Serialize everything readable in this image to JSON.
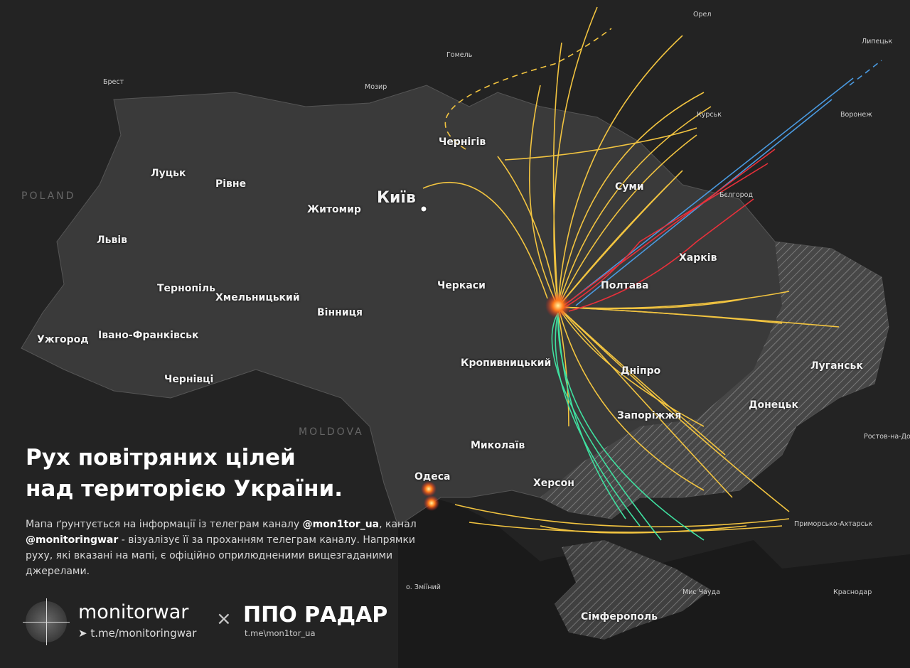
{
  "colors": {
    "background": "#202020",
    "land": "#3a3a3a",
    "attack_drone": "#f2c440",
    "missile_ballistic": "#e8303a",
    "missile_blue": "#4a9ae0",
    "missile_green": "#3fe0a0",
    "explosion": "#ff6a1a"
  },
  "map": {
    "countries": [
      "POLAND",
      "MOLDOVA"
    ],
    "capital": "Київ",
    "cities": [
      "Чернігів",
      "Луцьк",
      "Рівне",
      "Житомир",
      "Львів",
      "Тернопіль",
      "Хмельницький",
      "Вінниця",
      "Черкаси",
      "Суми",
      "Харків",
      "Полтава",
      "Ужгород",
      "Івано-Франківськ",
      "Чернівці",
      "Кропивницький",
      "Дніпро",
      "Луганськ",
      "Донецьк",
      "Запоріжжя",
      "Миколаїв",
      "Херсон",
      "Одеса",
      "Сімферополь"
    ],
    "foreign_places": [
      "Орел",
      "Липецьк",
      "Гомель",
      "Брест",
      "Мозир",
      "Курськ",
      "Воронеж",
      "Бєлгород",
      "Ростов-на-Дону",
      "Приморсько-Ахтарськ",
      "Краснодар",
      "Мис Чауда",
      "о. Зміїний"
    ]
  },
  "title": {
    "line1": "Рух повітряних цілей",
    "line2": "над територією України."
  },
  "description": {
    "p1": "Мапа ґрунтується на інформації із телеграм каналу ",
    "h1": "@mon1tor_ua",
    "p2": ", канал ",
    "h2": "@monitoringwar",
    "p3": " - візуалізує її за проханням телеграм каналу. Напрямки руху, які вказані на мапі, є офіційно оприлюдненими вищезгаданими джерелами."
  },
  "branding": {
    "monitorwar": "monitorwar",
    "monitorwar_link": "t.me/monitoringwar",
    "separator": "×",
    "ppo": "ППО РАДАР",
    "ppo_link": "t.me\\mon1tor_ua",
    "telegram_icon": "telegram-icon",
    "radar_icon": "radar-icon"
  }
}
